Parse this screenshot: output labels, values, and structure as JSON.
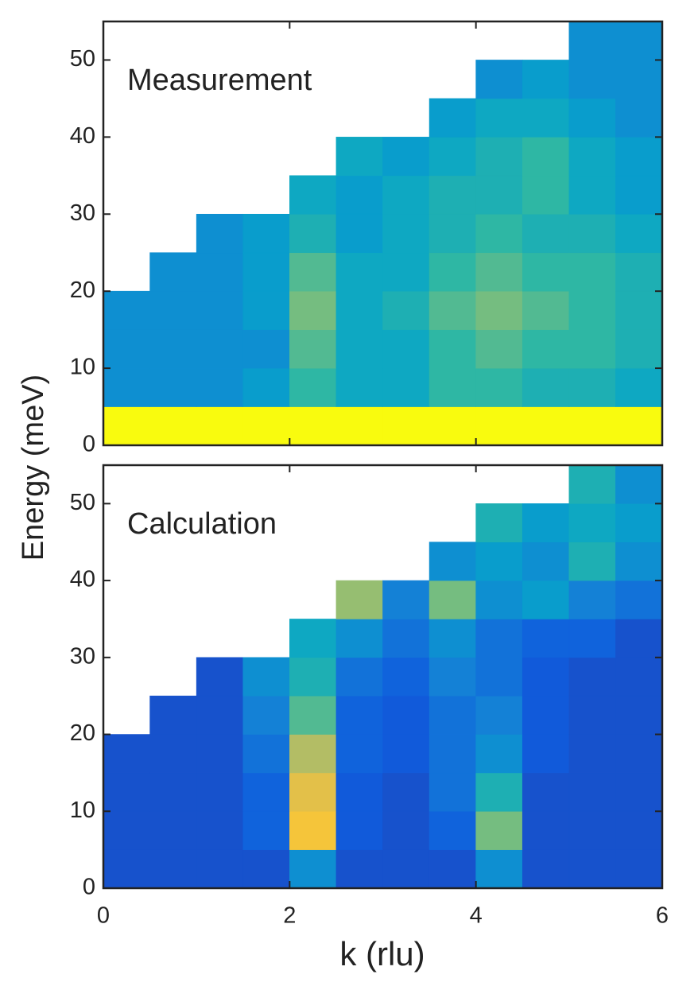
{
  "chart_data": [
    {
      "type": "heatmap",
      "title": "Measurement",
      "ylabel": "Energy (meV)",
      "xbins": [
        0,
        0.5,
        1,
        1.5,
        2,
        2.5,
        3,
        3.5,
        4,
        4.5,
        5,
        5.5,
        6
      ],
      "ybins": [
        0,
        5,
        10,
        15,
        20,
        25,
        30,
        35,
        40,
        45,
        50,
        55
      ],
      "xlim": [
        0,
        6
      ],
      "ylim": [
        0,
        55
      ],
      "xticks": [
        0,
        2,
        4,
        6
      ],
      "yticks": [
        0,
        10,
        20,
        30,
        40,
        50
      ],
      "colormap": [
        "#352a87",
        "#0f5cdd",
        "#1481d6",
        "#06a4ca",
        "#2eb7a4",
        "#87bf77",
        "#d1bb59",
        "#fec832",
        "#f9fb0e"
      ],
      "z": [
        [
          1,
          1,
          1,
          1,
          1,
          1,
          1,
          1,
          1,
          1,
          1,
          1
        ],
        [
          0.3,
          0.3,
          0.3,
          0.35,
          0.5,
          0.4,
          0.4,
          0.5,
          0.5,
          0.45,
          0.45,
          0.4
        ],
        [
          0.3,
          0.3,
          0.3,
          0.3,
          0.55,
          0.4,
          0.4,
          0.5,
          0.55,
          0.5,
          0.5,
          0.45
        ],
        [
          0.3,
          0.3,
          0.3,
          0.35,
          0.6,
          0.4,
          0.45,
          0.55,
          0.6,
          0.55,
          0.5,
          0.45
        ],
        [
          null,
          0.3,
          0.3,
          0.35,
          0.55,
          0.4,
          0.4,
          0.5,
          0.55,
          0.5,
          0.5,
          0.45
        ],
        [
          null,
          null,
          0.3,
          0.35,
          0.45,
          0.35,
          0.4,
          0.45,
          0.5,
          0.45,
          0.45,
          0.4
        ],
        [
          null,
          null,
          null,
          null,
          0.4,
          0.35,
          0.4,
          0.45,
          0.45,
          0.5,
          0.4,
          0.35
        ],
        [
          null,
          null,
          null,
          null,
          null,
          0.4,
          0.35,
          0.4,
          0.45,
          0.5,
          0.4,
          0.35
        ],
        [
          null,
          null,
          null,
          null,
          null,
          null,
          null,
          0.35,
          0.4,
          0.4,
          0.35,
          0.3
        ],
        [
          null,
          null,
          null,
          null,
          null,
          null,
          null,
          null,
          0.3,
          0.35,
          0.3,
          0.3
        ],
        [
          null,
          null,
          null,
          null,
          null,
          null,
          null,
          null,
          null,
          null,
          0.3,
          0.3
        ]
      ]
    },
    {
      "type": "heatmap",
      "title": "Calculation",
      "xlabel": "k (rlu)",
      "xbins": [
        0,
        0.5,
        1,
        1.5,
        2,
        2.5,
        3,
        3.5,
        4,
        4.5,
        5,
        5.5,
        6
      ],
      "ybins": [
        0,
        5,
        10,
        15,
        20,
        25,
        30,
        35,
        40,
        45,
        50,
        55
      ],
      "xlim": [
        0,
        6
      ],
      "ylim": [
        0,
        55
      ],
      "xticks": [
        0,
        2,
        4,
        6
      ],
      "yticks": [
        0,
        10,
        20,
        30,
        40,
        50
      ],
      "colormap": [
        "#352a87",
        "#0f5cdd",
        "#1481d6",
        "#06a4ca",
        "#2eb7a4",
        "#87bf77",
        "#d1bb59",
        "#fec832",
        "#f9fb0e"
      ],
      "z": [
        [
          0.1,
          0.1,
          0.1,
          0.1,
          0.3,
          0.1,
          0.1,
          0.1,
          0.3,
          0.1,
          0.1,
          0.1
        ],
        [
          0.1,
          0.1,
          0.1,
          0.15,
          0.85,
          0.12,
          0.1,
          0.15,
          0.6,
          0.1,
          0.1,
          0.1
        ],
        [
          0.1,
          0.1,
          0.1,
          0.15,
          0.8,
          0.12,
          0.1,
          0.2,
          0.45,
          0.1,
          0.1,
          0.1
        ],
        [
          0.1,
          0.1,
          0.1,
          0.2,
          0.7,
          0.15,
          0.12,
          0.2,
          0.3,
          0.12,
          0.1,
          0.1
        ],
        [
          null,
          0.1,
          0.1,
          0.25,
          0.55,
          0.15,
          0.12,
          0.2,
          0.25,
          0.12,
          0.1,
          0.1
        ],
        [
          null,
          null,
          0.1,
          0.3,
          0.45,
          0.2,
          0.15,
          0.25,
          0.2,
          0.12,
          0.1,
          0.1
        ],
        [
          null,
          null,
          null,
          null,
          0.4,
          0.3,
          0.2,
          0.3,
          0.2,
          0.15,
          0.15,
          0.1
        ],
        [
          null,
          null,
          null,
          null,
          null,
          0.65,
          0.25,
          0.6,
          0.3,
          0.35,
          0.25,
          0.2
        ],
        [
          null,
          null,
          null,
          null,
          null,
          null,
          null,
          0.3,
          0.35,
          0.3,
          0.45,
          0.3
        ],
        [
          null,
          null,
          null,
          null,
          null,
          null,
          null,
          null,
          0.45,
          0.35,
          0.4,
          0.35
        ],
        [
          null,
          null,
          null,
          null,
          null,
          null,
          null,
          null,
          null,
          null,
          0.45,
          0.3
        ]
      ]
    }
  ]
}
